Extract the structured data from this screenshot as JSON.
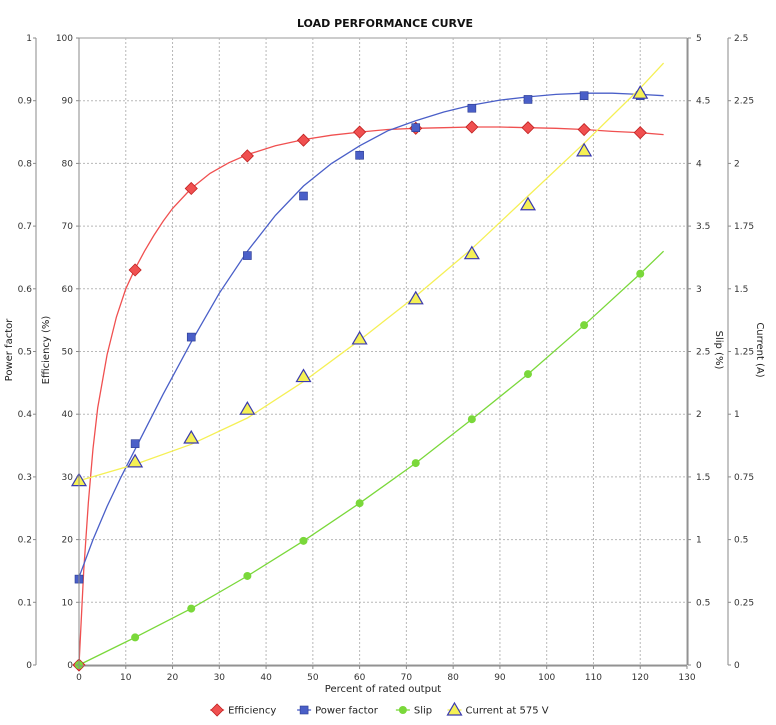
{
  "chart_data": {
    "type": "line",
    "title": "LOAD PERFORMANCE CURVE",
    "xlabel": "Percent of rated output",
    "xlim": [
      0,
      130
    ],
    "x_ticks": [
      0,
      10,
      20,
      30,
      40,
      50,
      60,
      70,
      80,
      90,
      100,
      110,
      120,
      130
    ],
    "axes": {
      "power_factor": {
        "label": "Power factor",
        "range": [
          0,
          1
        ],
        "ticks": [
          "0",
          "0.1",
          "0.2",
          "0.3",
          "0.4",
          "0.5",
          "0.6",
          "0.7",
          "0.8",
          "0.9",
          "1"
        ]
      },
      "efficiency": {
        "label": "Efficiency (%)",
        "range": [
          0,
          100
        ],
        "ticks": [
          "0",
          "10",
          "20",
          "30",
          "40",
          "50",
          "60",
          "70",
          "80",
          "90",
          "100"
        ]
      },
      "slip": {
        "label": "Slip (%)",
        "range": [
          0,
          5
        ],
        "ticks": [
          "0",
          "0.5",
          "1",
          "1.5",
          "2",
          "2.5",
          "3",
          "3.5",
          "4",
          "4.5",
          "5"
        ]
      },
      "current": {
        "label": "Current (A)",
        "range": [
          0,
          2.5
        ],
        "ticks": [
          "0",
          "0.25",
          "0.5",
          "0.75",
          "1",
          "1.25",
          "1.5",
          "1.75",
          "2",
          "2.25",
          "2.5"
        ]
      }
    },
    "grid": true,
    "legend_position": "bottom",
    "series": [
      {
        "name": "Efficiency",
        "axis": "efficiency",
        "color": "#f05050",
        "marker": "diamond",
        "points": [
          [
            0,
            0
          ],
          [
            12,
            63
          ],
          [
            24,
            76
          ],
          [
            36,
            81.2
          ],
          [
            48,
            83.7
          ],
          [
            60,
            85
          ],
          [
            72,
            85.6
          ],
          [
            84,
            85.8
          ],
          [
            96,
            85.7
          ],
          [
            108,
            85.4
          ],
          [
            120,
            84.9
          ]
        ],
        "curve": [
          [
            0,
            0
          ],
          [
            1,
            15
          ],
          [
            2,
            26
          ],
          [
            3,
            34.5
          ],
          [
            4,
            41
          ],
          [
            6,
            49.5
          ],
          [
            8,
            55.5
          ],
          [
            10,
            60
          ],
          [
            12,
            63.2
          ],
          [
            14,
            66
          ],
          [
            16,
            68.5
          ],
          [
            18,
            70.8
          ],
          [
            20,
            72.8
          ],
          [
            24,
            76
          ],
          [
            28,
            78.4
          ],
          [
            32,
            80.1
          ],
          [
            36,
            81.4
          ],
          [
            42,
            82.8
          ],
          [
            48,
            83.8
          ],
          [
            54,
            84.5
          ],
          [
            60,
            85
          ],
          [
            66,
            85.4
          ],
          [
            72,
            85.6
          ],
          [
            78,
            85.7
          ],
          [
            84,
            85.8
          ],
          [
            90,
            85.8
          ],
          [
            96,
            85.7
          ],
          [
            102,
            85.6
          ],
          [
            108,
            85.4
          ],
          [
            114,
            85.1
          ],
          [
            120,
            84.9
          ],
          [
            125,
            84.6
          ]
        ]
      },
      {
        "name": "Power factor",
        "axis": "power_factor",
        "color": "#4a5fc8",
        "marker": "square",
        "points": [
          [
            0,
            0.137
          ],
          [
            12,
            0.353
          ],
          [
            24,
            0.523
          ],
          [
            36,
            0.653
          ],
          [
            48,
            0.748
          ],
          [
            60,
            0.813
          ],
          [
            72,
            0.857
          ],
          [
            84,
            0.888
          ],
          [
            96,
            0.902
          ],
          [
            108,
            0.908
          ],
          [
            120,
            0.908
          ]
        ],
        "curve": [
          [
            0,
            0.14
          ],
          [
            3,
            0.2
          ],
          [
            6,
            0.253
          ],
          [
            9,
            0.3
          ],
          [
            12,
            0.344
          ],
          [
            18,
            0.432
          ],
          [
            24,
            0.515
          ],
          [
            30,
            0.593
          ],
          [
            36,
            0.66
          ],
          [
            42,
            0.717
          ],
          [
            48,
            0.764
          ],
          [
            54,
            0.8
          ],
          [
            60,
            0.828
          ],
          [
            66,
            0.852
          ],
          [
            72,
            0.868
          ],
          [
            78,
            0.882
          ],
          [
            84,
            0.893
          ],
          [
            90,
            0.901
          ],
          [
            96,
            0.906
          ],
          [
            102,
            0.91
          ],
          [
            108,
            0.912
          ],
          [
            114,
            0.912
          ],
          [
            120,
            0.91
          ],
          [
            125,
            0.908
          ]
        ]
      },
      {
        "name": "Slip",
        "axis": "slip",
        "color": "#7ad83a",
        "marker": "circle",
        "points": [
          [
            0,
            0
          ],
          [
            12,
            0.22
          ],
          [
            24,
            0.45
          ],
          [
            36,
            0.71
          ],
          [
            48,
            0.99
          ],
          [
            60,
            1.29
          ],
          [
            72,
            1.61
          ],
          [
            84,
            1.96
          ],
          [
            96,
            2.32
          ],
          [
            108,
            2.71
          ],
          [
            120,
            3.12
          ]
        ],
        "curve": [
          [
            0,
            0.0
          ],
          [
            12,
            0.22
          ],
          [
            24,
            0.45
          ],
          [
            36,
            0.71
          ],
          [
            48,
            0.99
          ],
          [
            60,
            1.29
          ],
          [
            72,
            1.61
          ],
          [
            84,
            1.96
          ],
          [
            96,
            2.32
          ],
          [
            108,
            2.71
          ],
          [
            120,
            3.12
          ],
          [
            125,
            3.3
          ]
        ]
      },
      {
        "name": "Current at 575 V",
        "axis": "current",
        "color": "#f5f055",
        "marker": "triangle",
        "points": [
          [
            0,
            0.735
          ],
          [
            12,
            0.81
          ],
          [
            24,
            0.905
          ],
          [
            36,
            1.02
          ],
          [
            48,
            1.15
          ],
          [
            60,
            1.3
          ],
          [
            72,
            1.46
          ],
          [
            84,
            1.64
          ],
          [
            96,
            1.835
          ],
          [
            108,
            2.05
          ],
          [
            120,
            2.28
          ]
        ],
        "curve": [
          [
            0,
            0.735
          ],
          [
            12,
            0.8
          ],
          [
            24,
            0.88
          ],
          [
            36,
            0.985
          ],
          [
            48,
            1.13
          ],
          [
            60,
            1.295
          ],
          [
            72,
            1.47
          ],
          [
            84,
            1.66
          ],
          [
            96,
            1.87
          ],
          [
            108,
            2.08
          ],
          [
            120,
            2.3
          ],
          [
            125,
            2.4
          ]
        ]
      }
    ]
  }
}
